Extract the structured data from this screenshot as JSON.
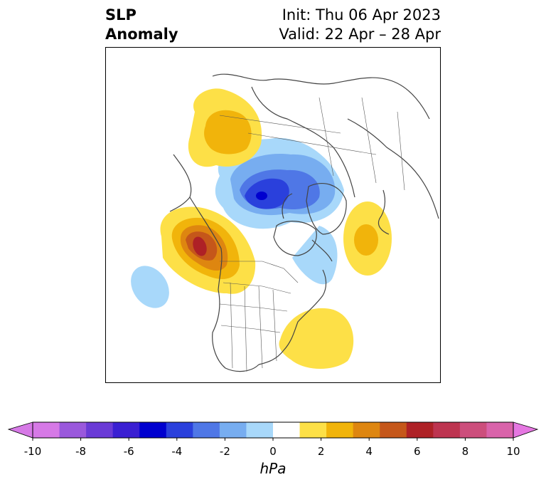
{
  "title": {
    "line1": "SLP",
    "line2": "Anomaly",
    "init": "Init: Thu 06 Apr 2023",
    "valid": "Valid: 22 Apr – 28 Apr"
  },
  "colorbar": {
    "units": "hPa",
    "ticks": [
      "-10",
      "-8",
      "-6",
      "-4",
      "-2",
      "0",
      "2",
      "4",
      "6",
      "8",
      "10"
    ],
    "colors": [
      "#d679e6",
      "#9a58dc",
      "#6a3ad6",
      "#3a1fd2",
      "#0000cf",
      "#2a40dc",
      "#4f77e6",
      "#77adf0",
      "#a8d8fa",
      "#ffffff",
      "#fde047",
      "#f1b40b",
      "#de8610",
      "#c5571a",
      "#ae2126",
      "#bd3450",
      "#cc4e7c",
      "#d963aa"
    ],
    "extend_low_color": "#d679e6",
    "extend_high_color": "#e577e1"
  },
  "map": {
    "projection": "polar-stereographic",
    "region": "Northern Hemisphere / North America",
    "anomaly_colors": {
      "neg_1": "#a8d8fa",
      "neg_2": "#77adf0",
      "neg_3": "#4f77e6",
      "neg_4": "#2a40dc",
      "neg_5": "#0000cf",
      "pos_1": "#fde047",
      "pos_2": "#f1b40b",
      "pos_3": "#de8610",
      "pos_4": "#c5571a",
      "pos_5": "#ae2126"
    }
  }
}
